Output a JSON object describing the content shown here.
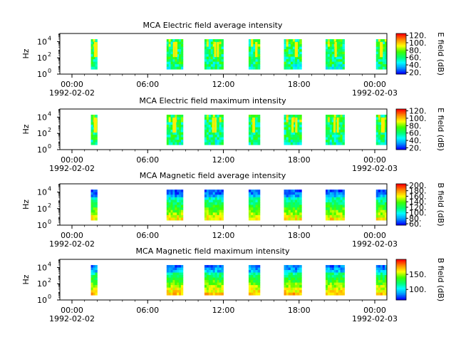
{
  "chart_data": [
    {
      "type": "heatmap",
      "title": "MCA  Electric field average intensity",
      "ylabel": "Hz",
      "colorbar_label": "E field (dB)",
      "colorbar_range": [
        15,
        125
      ],
      "colorbar_ticks": [
        "20.",
        "40.",
        "60.",
        "80.",
        "100.",
        "120."
      ],
      "ylim": [
        1,
        100000
      ],
      "yscale": "log",
      "ytick_labels": [
        [
          "10",
          "0"
        ],
        [
          "10",
          "2"
        ],
        [
          "10",
          "4"
        ]
      ],
      "x_time_labels": [
        "00:00",
        "06:00",
        "12:00",
        "18:00",
        "00:00"
      ],
      "x_date_labels": [
        "1992-02-02",
        "1992-02-03"
      ],
      "xlim_hours": [
        0,
        24
      ],
      "data_blocks_hours": [
        [
          1.5,
          2.0
        ],
        [
          7.5,
          8.8
        ],
        [
          10.5,
          12.0
        ],
        [
          14.0,
          14.9
        ],
        [
          16.8,
          18.2
        ],
        [
          20.1,
          21.6
        ],
        [
          24.1,
          25.0
        ]
      ]
    },
    {
      "type": "heatmap",
      "title": "MCA  Electric field maximum intensity",
      "ylabel": "Hz",
      "colorbar_label": "E field (dB)",
      "colorbar_range": [
        15,
        125
      ],
      "colorbar_ticks": [
        "20.",
        "40.",
        "60.",
        "80.",
        "100.",
        "120."
      ],
      "ylim": [
        1,
        100000
      ],
      "yscale": "log",
      "ytick_labels": [
        [
          "10",
          "0"
        ],
        [
          "10",
          "2"
        ],
        [
          "10",
          "4"
        ]
      ],
      "x_time_labels": [
        "00:00",
        "06:00",
        "12:00",
        "18:00",
        "00:00"
      ],
      "x_date_labels": [
        "1992-02-02",
        "1992-02-03"
      ],
      "xlim_hours": [
        0,
        24
      ],
      "data_blocks_hours": [
        [
          1.5,
          2.0
        ],
        [
          7.5,
          8.8
        ],
        [
          10.5,
          12.0
        ],
        [
          14.0,
          14.9
        ],
        [
          16.8,
          18.2
        ],
        [
          20.1,
          21.6
        ],
        [
          24.1,
          25.0
        ]
      ]
    },
    {
      "type": "heatmap",
      "title": "MCA  Magnetic field average intensity",
      "ylabel": "Hz",
      "colorbar_label": "B field (dB)",
      "colorbar_range": [
        55,
        205
      ],
      "colorbar_ticks": [
        "60.",
        "80.",
        "100.",
        "120.",
        "140.",
        "160.",
        "180.",
        "200."
      ],
      "ylim": [
        1,
        100000
      ],
      "yscale": "log",
      "ytick_labels": [
        [
          "10",
          "0"
        ],
        [
          "10",
          "2"
        ],
        [
          "10",
          "4"
        ]
      ],
      "x_time_labels": [
        "00:00",
        "06:00",
        "12:00",
        "18:00",
        "00:00"
      ],
      "x_date_labels": [
        "1992-02-02",
        "1992-02-03"
      ],
      "xlim_hours": [
        0,
        24
      ],
      "data_blocks_hours": [
        [
          1.5,
          2.0
        ],
        [
          7.5,
          8.8
        ],
        [
          10.5,
          12.0
        ],
        [
          14.0,
          14.9
        ],
        [
          16.8,
          18.2
        ],
        [
          20.1,
          21.6
        ],
        [
          24.1,
          25.0
        ]
      ]
    },
    {
      "type": "heatmap",
      "title": "MCA  Magnetic field maximum intensity",
      "ylabel": "Hz",
      "colorbar_label": "B field (dB)",
      "colorbar_range": [
        65,
        200
      ],
      "colorbar_ticks": [
        "100.",
        "150."
      ],
      "ylim": [
        1,
        100000
      ],
      "yscale": "log",
      "ytick_labels": [
        [
          "10",
          "0"
        ],
        [
          "10",
          "2"
        ],
        [
          "10",
          "4"
        ]
      ],
      "x_time_labels": [
        "00:00",
        "06:00",
        "12:00",
        "18:00",
        "00:00"
      ],
      "x_date_labels": [
        "1992-02-02",
        "1992-02-03"
      ],
      "xlim_hours": [
        0,
        24
      ],
      "data_blocks_hours": [
        [
          1.5,
          2.0
        ],
        [
          7.5,
          8.8
        ],
        [
          10.5,
          12.0
        ],
        [
          14.0,
          14.9
        ],
        [
          16.8,
          18.2
        ],
        [
          20.1,
          21.6
        ],
        [
          24.1,
          25.0
        ]
      ]
    }
  ]
}
